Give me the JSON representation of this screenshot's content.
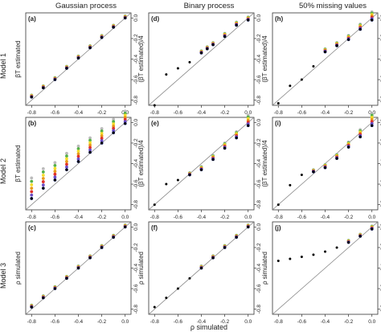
{
  "figure": {
    "column_titles": [
      "Gaussian process",
      "Binary process",
      "50% missing values"
    ],
    "row_titles": [
      "Model 1",
      "Model 2",
      "Model 3"
    ],
    "x_label": "ρ simulated"
  },
  "colors": {
    "points": [
      "#000000",
      "#1f2f99",
      "#6a4bc4",
      "#e0322a",
      "#e89a1a",
      "#f5de2a",
      "#55b048",
      "#bbbbbb"
    ],
    "identity_line": "#888888"
  },
  "chart_data": [
    {
      "type": "scatter",
      "panel": "(a)",
      "ylabel": "βT estimated",
      "xlim": [
        -0.85,
        0.05
      ],
      "ylim": [
        -0.85,
        0.05
      ],
      "xticks": [
        -0.8,
        -0.6,
        -0.4,
        -0.2,
        0.0
      ],
      "yticks": [
        -0.8,
        -0.6,
        -0.4,
        -0.2,
        0.0
      ],
      "identity_line": true,
      "x": [
        -0.8,
        -0.7,
        -0.6,
        -0.5,
        -0.4,
        -0.3,
        -0.2,
        -0.1,
        0.0
      ],
      "y": [
        -0.77,
        -0.68,
        -0.6,
        -0.49,
        -0.39,
        -0.29,
        -0.19,
        -0.09,
        0.0
      ],
      "spread": [
        0.02,
        0.02,
        0.02,
        0.02,
        0.02,
        0.02,
        0.02,
        0.02,
        0.02
      ]
    },
    {
      "type": "scatter",
      "panel": "(b)",
      "ylabel": "βT estimated",
      "xlim": [
        -0.85,
        0.05
      ],
      "ylim": [
        -0.85,
        0.05
      ],
      "xticks": [
        -0.8,
        -0.6,
        -0.4,
        -0.2,
        0.0
      ],
      "yticks": [
        -0.8,
        -0.6,
        -0.4,
        -0.2,
        0.0
      ],
      "identity_line": true,
      "x": [
        -0.8,
        -0.7,
        -0.6,
        -0.5,
        -0.4,
        -0.3,
        -0.2,
        -0.1,
        0.0
      ],
      "y": [
        -0.74,
        -0.64,
        -0.56,
        -0.46,
        -0.38,
        -0.29,
        -0.2,
        -0.1,
        -0.01
      ],
      "spread": [
        0.2,
        0.19,
        0.17,
        0.16,
        0.15,
        0.14,
        0.14,
        0.13,
        0.12
      ]
    },
    {
      "type": "scatter",
      "panel": "(c)",
      "ylabel": "ρ simulated",
      "xlim": [
        -0.85,
        0.05
      ],
      "ylim": [
        -0.85,
        0.05
      ],
      "xticks": [
        -0.8,
        -0.6,
        -0.4,
        -0.2,
        0.0
      ],
      "yticks": [
        -0.8,
        -0.6,
        -0.4,
        -0.2,
        0.0
      ],
      "identity_line": true,
      "x": [
        -0.8,
        -0.7,
        -0.6,
        -0.5,
        -0.4,
        -0.3,
        -0.2,
        -0.1,
        0.0
      ],
      "y": [
        -0.78,
        -0.69,
        -0.6,
        -0.5,
        -0.4,
        -0.3,
        -0.2,
        -0.1,
        0.0
      ],
      "spread": [
        0.02,
        0.02,
        0.02,
        0.02,
        0.02,
        0.02,
        0.02,
        0.02,
        0.02
      ]
    },
    {
      "type": "scatter",
      "panel": "(d)",
      "ylabel": "(βT estimated)/4",
      "xlim": [
        -0.85,
        0.05
      ],
      "ylim": [
        -0.85,
        0.05
      ],
      "xticks": [
        -0.8,
        -0.6,
        -0.4,
        -0.2,
        0.0
      ],
      "yticks": [
        -0.8,
        -0.6,
        -0.4,
        -0.2,
        0.0
      ],
      "identity_line": true,
      "x": [
        -0.8,
        -0.7,
        -0.6,
        -0.5,
        -0.4,
        -0.35,
        -0.3,
        -0.2,
        -0.1,
        0.0
      ],
      "y": [
        -0.85,
        -0.55,
        -0.49,
        -0.43,
        -0.34,
        -0.3,
        -0.26,
        -0.18,
        -0.07,
        -0.02
      ],
      "spread": [
        0.0,
        0.0,
        0.0,
        0.0,
        0.02,
        0.02,
        0.02,
        0.03,
        0.03,
        0.03
      ]
    },
    {
      "type": "scatter",
      "panel": "(e)",
      "ylabel": "(βT estimated)/4",
      "xlim": [
        -0.85,
        0.05
      ],
      "ylim": [
        -0.85,
        0.05
      ],
      "xticks": [
        -0.8,
        -0.6,
        -0.4,
        -0.2,
        0.0
      ],
      "yticks": [
        -0.8,
        -0.6,
        -0.4,
        -0.2,
        0.0
      ],
      "identity_line": true,
      "x": [
        -0.8,
        -0.7,
        -0.6,
        -0.5,
        -0.4,
        -0.3,
        -0.2,
        -0.1,
        0.0
      ],
      "y": [
        -0.8,
        -0.6,
        -0.56,
        -0.51,
        -0.46,
        -0.36,
        -0.25,
        -0.15,
        -0.03
      ],
      "spread": [
        0.0,
        0.0,
        0.0,
        0.02,
        0.03,
        0.04,
        0.05,
        0.06,
        0.1
      ]
    },
    {
      "type": "scatter",
      "panel": "(f)",
      "ylabel": "ρ simulated",
      "xlim": [
        -0.85,
        0.05
      ],
      "ylim": [
        -0.85,
        0.05
      ],
      "xticks": [
        -0.8,
        -0.6,
        -0.4,
        -0.2,
        0.0
      ],
      "yticks": [
        -0.8,
        -0.6,
        -0.4,
        -0.2,
        0.0
      ],
      "identity_line": true,
      "x": [
        -0.8,
        -0.7,
        -0.6,
        -0.5,
        -0.4,
        -0.3,
        -0.2,
        -0.1,
        0.0
      ],
      "y": [
        -0.78,
        -0.69,
        -0.6,
        -0.5,
        -0.4,
        -0.3,
        -0.2,
        -0.1,
        0.0
      ],
      "spread": [
        0.0,
        0.0,
        0.0,
        0.0,
        0.02,
        0.02,
        0.02,
        0.02,
        0.02
      ]
    },
    {
      "type": "scatter",
      "panel": "(h)",
      "ylabel": "(βT estimated)/4",
      "xlim": [
        -0.85,
        0.05
      ],
      "ylim": [
        -0.85,
        0.05
      ],
      "xticks": [
        -0.8,
        -0.6,
        -0.4,
        -0.2,
        0.0
      ],
      "yticks": [
        -0.8,
        -0.6,
        -0.4,
        -0.2,
        0.0
      ],
      "identity_line": true,
      "x": [
        -0.8,
        -0.7,
        -0.6,
        -0.5,
        -0.4,
        -0.3,
        -0.2,
        -0.1,
        0.0
      ],
      "y": [
        -0.83,
        -0.66,
        -0.6,
        -0.47,
        -0.33,
        -0.27,
        -0.21,
        -0.11,
        -0.02
      ],
      "spread": [
        0.0,
        0.0,
        0.0,
        0.0,
        0.03,
        0.03,
        0.04,
        0.05,
        0.08
      ]
    },
    {
      "type": "scatter",
      "panel": "(i)",
      "ylabel": "(βT estimated)/4",
      "xlim": [
        -0.85,
        0.05
      ],
      "ylim": [
        -0.85,
        0.05
      ],
      "xticks": [
        -0.8,
        -0.6,
        -0.4,
        -0.2,
        0.0
      ],
      "yticks": [
        -0.8,
        -0.6,
        -0.4,
        -0.2,
        0.0
      ],
      "identity_line": true,
      "x": [
        -0.8,
        -0.7,
        -0.6,
        -0.5,
        -0.4,
        -0.3,
        -0.2,
        -0.1,
        0.0
      ],
      "y": [
        -0.8,
        -0.61,
        -0.51,
        -0.48,
        -0.44,
        -0.35,
        -0.24,
        -0.14,
        -0.03
      ],
      "spread": [
        0.0,
        0.0,
        0.0,
        0.02,
        0.03,
        0.04,
        0.05,
        0.07,
        0.12
      ]
    },
    {
      "type": "scatter",
      "panel": "(j)",
      "ylabel": "ρ simulated",
      "xlim": [
        -0.85,
        0.05
      ],
      "ylim": [
        -0.85,
        0.05
      ],
      "xticks": [
        -0.8,
        -0.6,
        -0.4,
        -0.2,
        0.0
      ],
      "yticks": [
        -0.8,
        -0.6,
        -0.4,
        -0.2,
        0.0
      ],
      "identity_line": true,
      "x": [
        -0.8,
        -0.7,
        -0.6,
        -0.5,
        -0.4,
        -0.3,
        -0.2,
        -0.1,
        0.0
      ],
      "y": [
        -0.33,
        -0.31,
        -0.29,
        -0.27,
        -0.24,
        -0.2,
        -0.15,
        -0.09,
        -0.02
      ],
      "spread": [
        0.0,
        0.0,
        0.0,
        0.0,
        0.0,
        0.0,
        0.02,
        0.02,
        0.03
      ]
    }
  ]
}
